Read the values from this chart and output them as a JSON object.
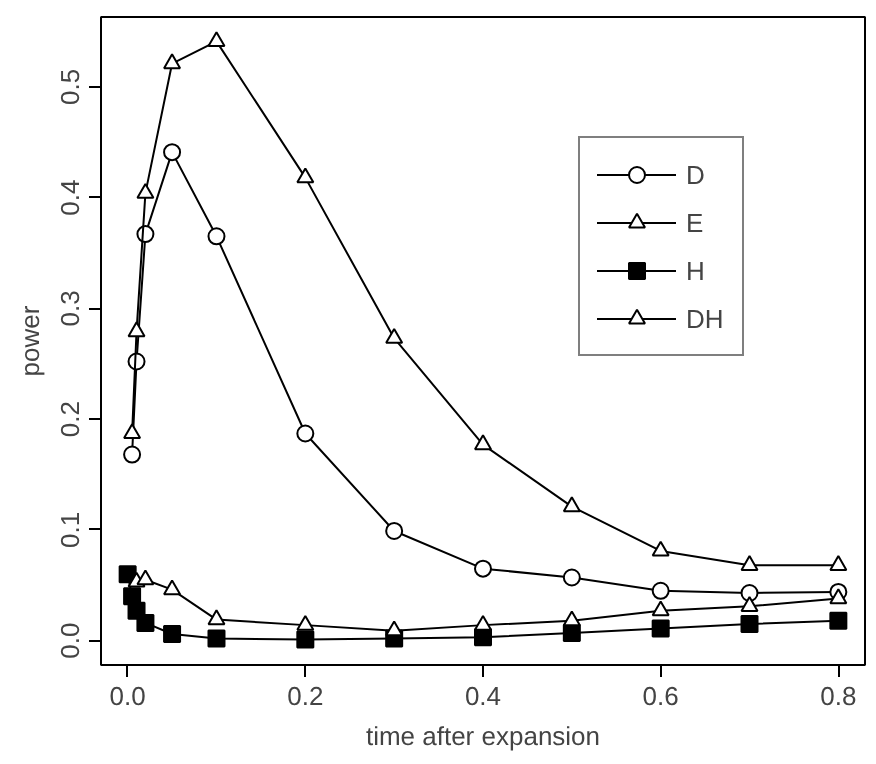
{
  "chart_data": {
    "type": "line",
    "xlabel": "time after expansion",
    "ylabel": "power",
    "x": [
      0,
      0.005,
      0.01,
      0.02,
      0.05,
      0.1,
      0.2,
      0.3,
      0.4,
      0.5,
      0.6,
      0.7,
      0.8
    ],
    "series": [
      {
        "name": "D",
        "color": "#000000",
        "marker": "circle",
        "values": [
          null,
          0.168,
          0.252,
          0.367,
          0.441,
          0.365,
          0.187,
          0.099,
          0.065,
          0.057,
          0.045,
          0.043,
          0.044
        ]
      },
      {
        "name": "E",
        "color": "#000000",
        "marker": "triangle",
        "values": [
          null,
          0.187,
          0.279,
          0.404,
          0.521,
          0.541,
          0.418,
          0.273,
          0.177,
          0.121,
          0.081,
          0.068,
          0.068
        ]
      },
      {
        "name": "H",
        "color": "#000000",
        "marker": "square",
        "values": [
          0.06,
          0.04,
          0.027,
          0.016,
          0.006,
          0.002,
          0.001,
          0.002,
          0.003,
          0.007,
          0.011,
          0.015,
          0.018
        ]
      },
      {
        "name": "DH",
        "color": "#000000",
        "marker": "triangle",
        "values": [
          null,
          null,
          0.053,
          0.055,
          0.046,
          0.019,
          0.014,
          0.009,
          0.014,
          0.018,
          0.027,
          0.031,
          0.038
        ]
      }
    ],
    "xlim": [
      -0.03,
      0.83
    ],
    "ylim": [
      -0.022,
      0.563
    ],
    "xticks": [
      {
        "value": 0,
        "label": "0.0"
      },
      {
        "value": 0.2,
        "label": "0.2"
      },
      {
        "value": 0.4,
        "label": "0.4"
      },
      {
        "value": 0.6,
        "label": "0.6"
      },
      {
        "value": 0.8,
        "label": "0.8"
      }
    ],
    "yticks": [
      {
        "value": 0,
        "label": "0.0"
      },
      {
        "value": 0.1,
        "label": "0.1"
      },
      {
        "value": 0.2,
        "label": "0.2"
      },
      {
        "value": 0.3,
        "label": "0.3"
      },
      {
        "value": 0.4,
        "label": "0.4"
      },
      {
        "value": 0.5,
        "label": "0.5"
      }
    ],
    "grid": false,
    "legend": "top right",
    "line_style": "solid"
  }
}
